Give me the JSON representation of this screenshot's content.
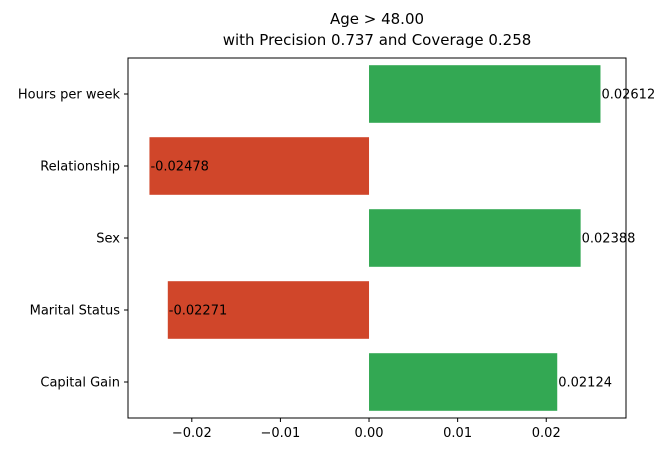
{
  "chart_data": {
    "type": "bar",
    "orientation": "horizontal",
    "title": [
      "Age > 48.00",
      "with Precision 0.737 and Coverage 0.258"
    ],
    "xlabel": "",
    "ylabel": "",
    "xlim": [
      -0.0272,
      0.029
    ],
    "categories": [
      "Hours per week",
      "Relationship",
      "Sex",
      "Marital Status",
      "Capital Gain"
    ],
    "values": [
      0.02612,
      -0.02478,
      0.02388,
      -0.02271,
      0.02124
    ],
    "value_labels": [
      "0.02612",
      "-0.02478",
      "0.02388",
      "-0.02271",
      "0.02124"
    ],
    "x_ticks": [
      -0.02,
      -0.01,
      0.0,
      0.01,
      0.02
    ],
    "x_tick_labels": [
      "−0.02",
      "−0.01",
      "0.00",
      "0.01",
      "0.02"
    ],
    "colors": {
      "positive": "#33a853",
      "negative": "#d0462a"
    },
    "grid": false,
    "legend": "none"
  }
}
